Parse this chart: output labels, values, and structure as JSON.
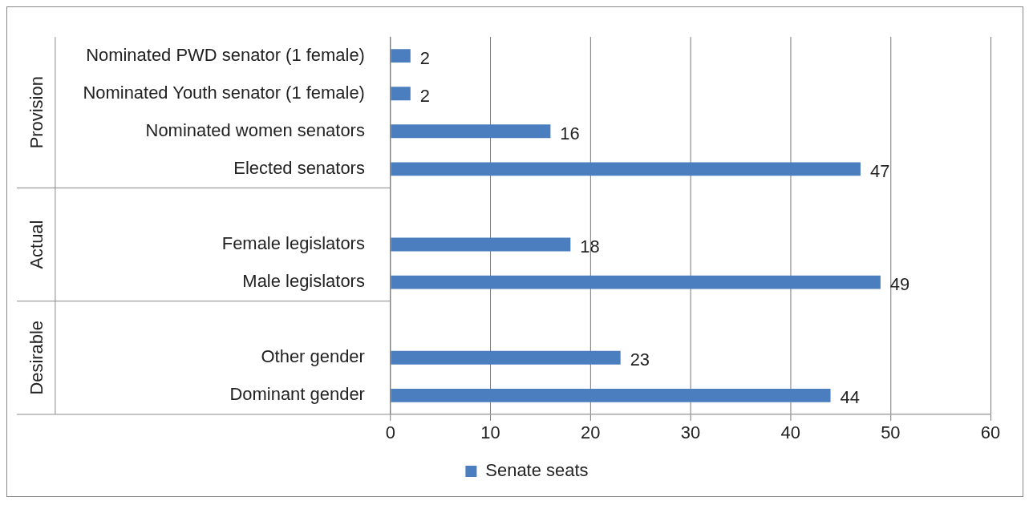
{
  "chart_data": {
    "type": "bar",
    "orientation": "horizontal",
    "categories": [
      "Nominated PWD senator (1 female)",
      "Nominated Youth senator (1 female)",
      "Nominated women senators",
      "Elected senators",
      null,
      "Female legislators",
      "Male legislators",
      null,
      "Other gender",
      "Dominant gender"
    ],
    "series": [
      {
        "name": "Senate seats",
        "color": "#4a7ebf",
        "values": [
          2,
          2,
          16,
          47,
          null,
          18,
          49,
          null,
          23,
          44
        ]
      }
    ],
    "xlim": [
      0,
      60
    ],
    "xticks": [
      0,
      10,
      20,
      30,
      40,
      50,
      60
    ],
    "grid": "x",
    "legend": "bottom",
    "data_labels": true,
    "annotations": [
      "Provision",
      "Actual",
      "Desirable"
    ]
  }
}
